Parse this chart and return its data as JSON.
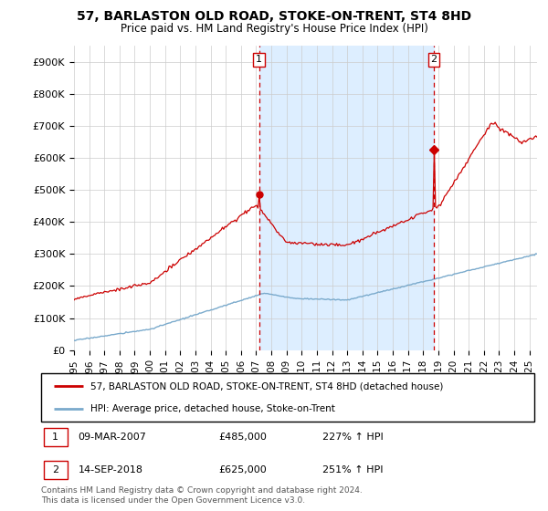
{
  "title": "57, BARLASTON OLD ROAD, STOKE-ON-TRENT, ST4 8HD",
  "subtitle": "Price paid vs. HM Land Registry's House Price Index (HPI)",
  "yticks": [
    0,
    100000,
    200000,
    300000,
    400000,
    500000,
    600000,
    700000,
    800000,
    900000
  ],
  "ytick_labels": [
    "£0",
    "£100K",
    "£200K",
    "£300K",
    "£400K",
    "£500K",
    "£600K",
    "£700K",
    "£800K",
    "£900K"
  ],
  "xlim_start": 1995.0,
  "xlim_end": 2025.5,
  "ylim_min": 0,
  "ylim_max": 950000,
  "sale1_x": 2007.19,
  "sale1_y": 485000,
  "sale1_label": "1",
  "sale1_date": "09-MAR-2007",
  "sale1_price": "£485,000",
  "sale1_hpi": "227% ↑ HPI",
  "sale2_x": 2018.71,
  "sale2_y": 625000,
  "sale2_label": "2",
  "sale2_date": "14-SEP-2018",
  "sale2_price": "£625,000",
  "sale2_hpi": "251% ↑ HPI",
  "line_color_red": "#cc0000",
  "line_color_blue": "#7aaacc",
  "shade_color": "#ddeeff",
  "dashed_color": "#cc0000",
  "background_color": "#ffffff",
  "grid_color": "#cccccc",
  "legend_label_red": "57, BARLASTON OLD ROAD, STOKE-ON-TRENT, ST4 8HD (detached house)",
  "legend_label_blue": "HPI: Average price, detached house, Stoke-on-Trent",
  "footer": "Contains HM Land Registry data © Crown copyright and database right 2024.\nThis data is licensed under the Open Government Licence v3.0.",
  "xticks": [
    1995,
    1996,
    1997,
    1998,
    1999,
    2000,
    2001,
    2002,
    2003,
    2004,
    2005,
    2006,
    2007,
    2008,
    2009,
    2010,
    2011,
    2012,
    2013,
    2014,
    2015,
    2016,
    2017,
    2018,
    2019,
    2020,
    2021,
    2022,
    2023,
    2024,
    2025
  ]
}
